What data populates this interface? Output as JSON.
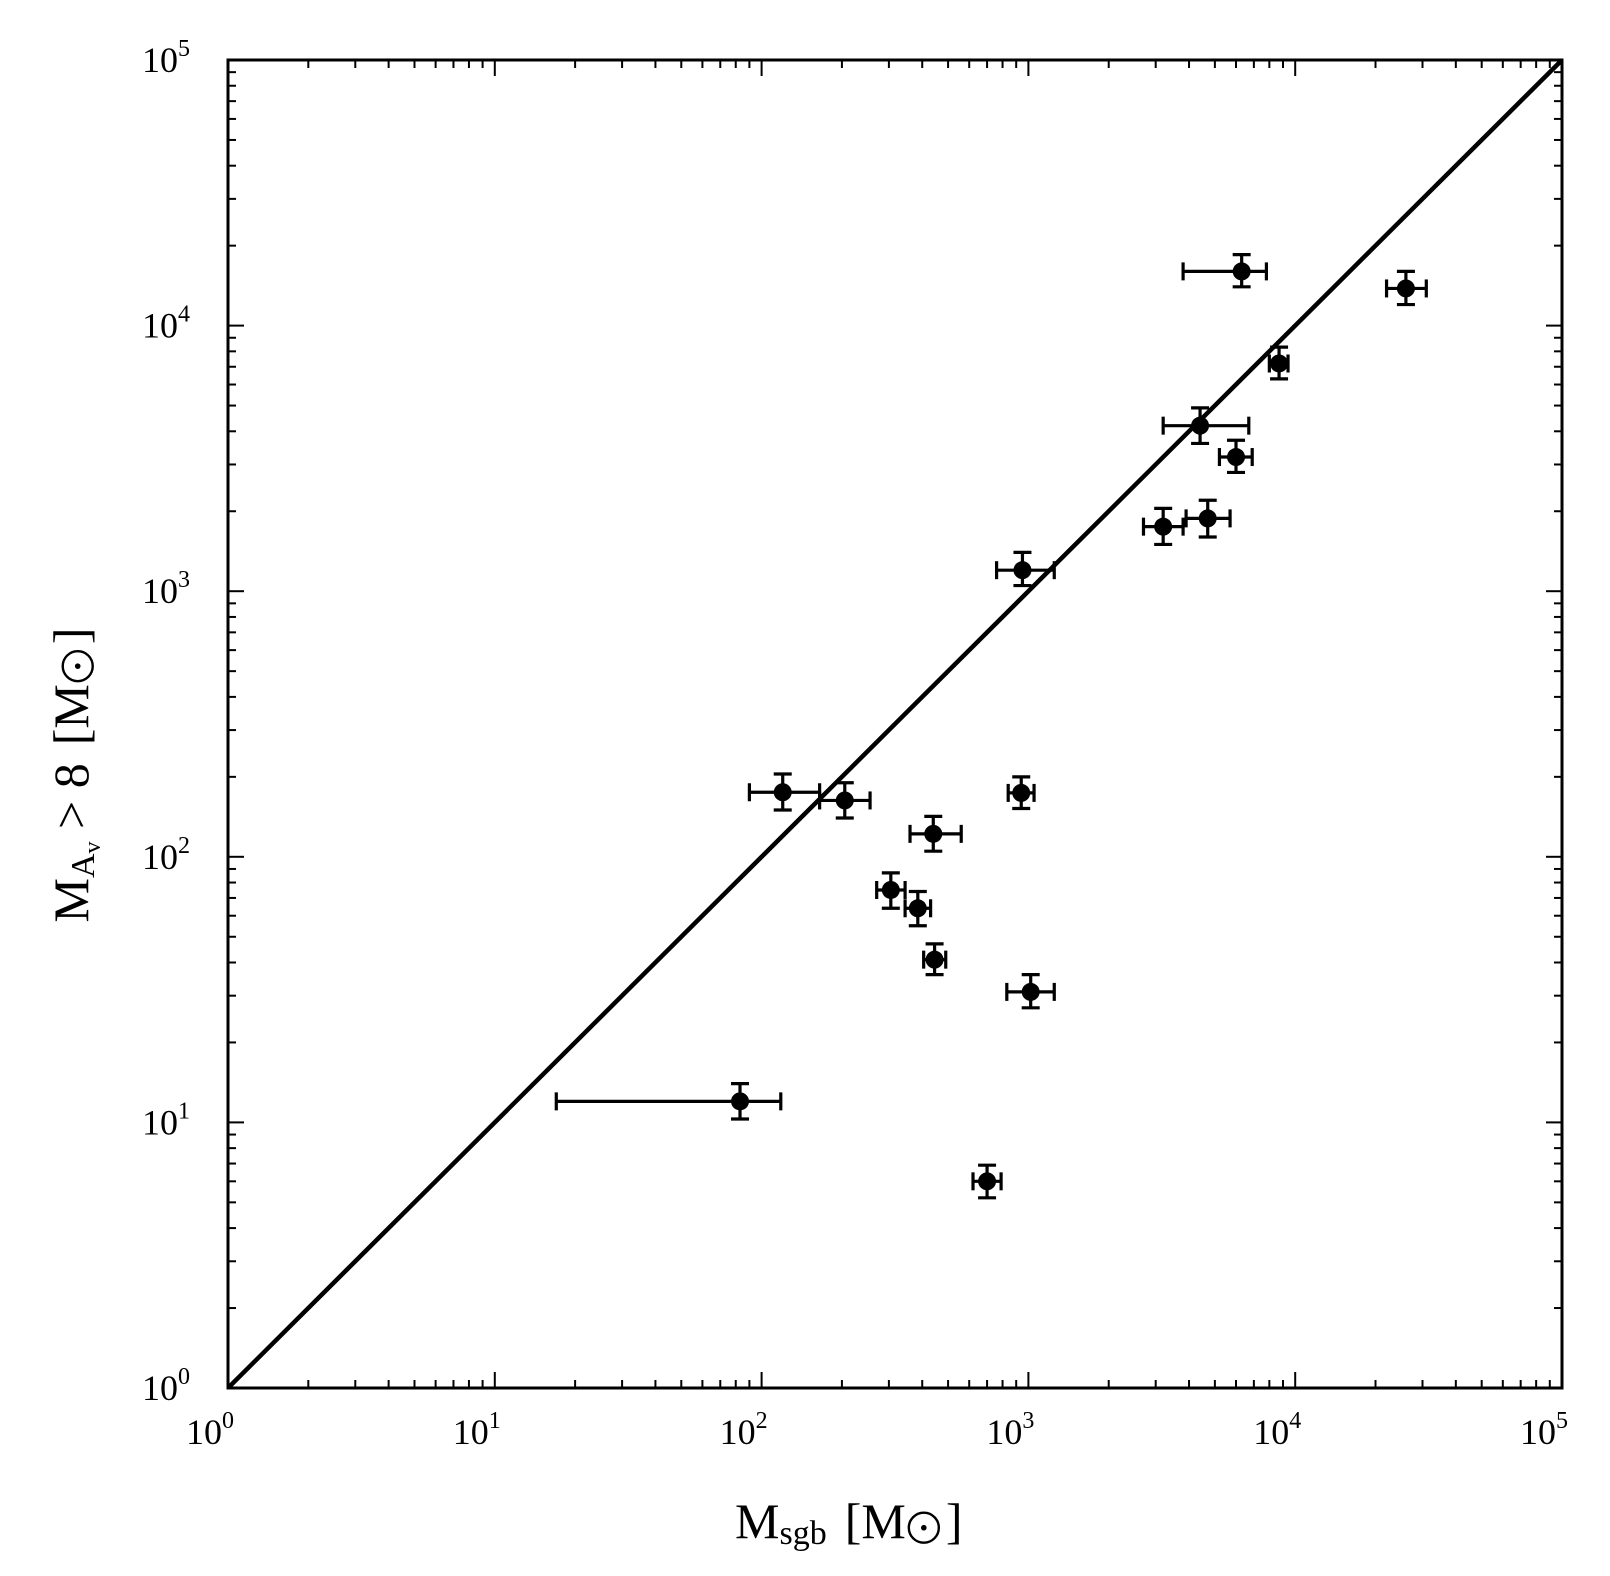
{
  "chart_data": {
    "type": "scatter",
    "xscale": "log",
    "yscale": "log",
    "xlim": [
      1,
      100000
    ],
    "ylim": [
      1,
      100000
    ],
    "grid": false,
    "xlabel": {
      "main": "M",
      "sub": "sgb",
      "unit_open": "[M",
      "unit_close": "]",
      "unit_symbol": "sun"
    },
    "ylabel": {
      "main": "M",
      "sub": "A",
      "subsub": "v",
      "rest": " > 8",
      "unit_open": "[M",
      "unit_close": "]",
      "unit_symbol": "sun"
    },
    "x_ticks": [
      {
        "value": 1,
        "base": "10",
        "exp": "0"
      },
      {
        "value": 10,
        "base": "10",
        "exp": "1"
      },
      {
        "value": 100,
        "base": "10",
        "exp": "2"
      },
      {
        "value": 1000,
        "base": "10",
        "exp": "3"
      },
      {
        "value": 10000,
        "base": "10",
        "exp": "4"
      },
      {
        "value": 100000,
        "base": "10",
        "exp": "5"
      }
    ],
    "y_ticks": [
      {
        "value": 1,
        "base": "10",
        "exp": "0"
      },
      {
        "value": 10,
        "base": "10",
        "exp": "1"
      },
      {
        "value": 100,
        "base": "10",
        "exp": "2"
      },
      {
        "value": 1000,
        "base": "10",
        "exp": "3"
      },
      {
        "value": 10000,
        "base": "10",
        "exp": "4"
      },
      {
        "value": 100000,
        "base": "10",
        "exp": "5"
      }
    ],
    "reference_line": {
      "x": [
        1,
        100000
      ],
      "y": [
        1,
        100000
      ],
      "style": "solid",
      "color": "#000000"
    },
    "marker_color": "#000000",
    "points": [
      {
        "x": 6300,
        "y": 16000,
        "xerr": [
          3800,
          7800
        ],
        "yerr": [
          14000,
          18500
        ]
      },
      {
        "x": 26000,
        "y": 13800,
        "xerr": [
          22000,
          31000
        ],
        "yerr": [
          12000,
          16000
        ]
      },
      {
        "x": 8700,
        "y": 7200,
        "xerr": [
          8000,
          9400
        ],
        "yerr": [
          6300,
          8300
        ]
      },
      {
        "x": 4400,
        "y": 4200,
        "xerr": [
          3200,
          6700
        ],
        "yerr": [
          3600,
          4900
        ]
      },
      {
        "x": 6000,
        "y": 3200,
        "xerr": [
          5200,
          6900
        ],
        "yerr": [
          2800,
          3700
        ]
      },
      {
        "x": 3200,
        "y": 1750,
        "xerr": [
          2700,
          3800
        ],
        "yerr": [
          1500,
          2050
        ]
      },
      {
        "x": 4700,
        "y": 1880,
        "xerr": [
          3900,
          5700
        ],
        "yerr": [
          1600,
          2200
        ]
      },
      {
        "x": 950,
        "y": 1200,
        "xerr": [
          760,
          1250
        ],
        "yerr": [
          1050,
          1400
        ]
      },
      {
        "x": 120,
        "y": 175,
        "xerr": [
          90,
          165
        ],
        "yerr": [
          150,
          205
        ]
      },
      {
        "x": 205,
        "y": 163,
        "xerr": [
          165,
          255
        ],
        "yerr": [
          140,
          190
        ]
      },
      {
        "x": 440,
        "y": 122,
        "xerr": [
          360,
          560
        ],
        "yerr": [
          105,
          142
        ]
      },
      {
        "x": 940,
        "y": 174,
        "xerr": [
          840,
          1050
        ],
        "yerr": [
          152,
          200
        ]
      },
      {
        "x": 305,
        "y": 75,
        "xerr": [
          270,
          345
        ],
        "yerr": [
          64,
          87
        ]
      },
      {
        "x": 385,
        "y": 64,
        "xerr": [
          345,
          430
        ],
        "yerr": [
          55,
          74
        ]
      },
      {
        "x": 445,
        "y": 41,
        "xerr": [
          405,
          490
        ],
        "yerr": [
          36,
          47
        ]
      },
      {
        "x": 1020,
        "y": 31,
        "xerr": [
          830,
          1250
        ],
        "yerr": [
          27,
          36
        ]
      },
      {
        "x": 83,
        "y": 12,
        "xerr": [
          17,
          118
        ],
        "yerr": [
          10.3,
          14
        ]
      },
      {
        "x": 700,
        "y": 6,
        "xerr": [
          620,
          790
        ],
        "yerr": [
          5.2,
          6.9
        ]
      }
    ]
  }
}
